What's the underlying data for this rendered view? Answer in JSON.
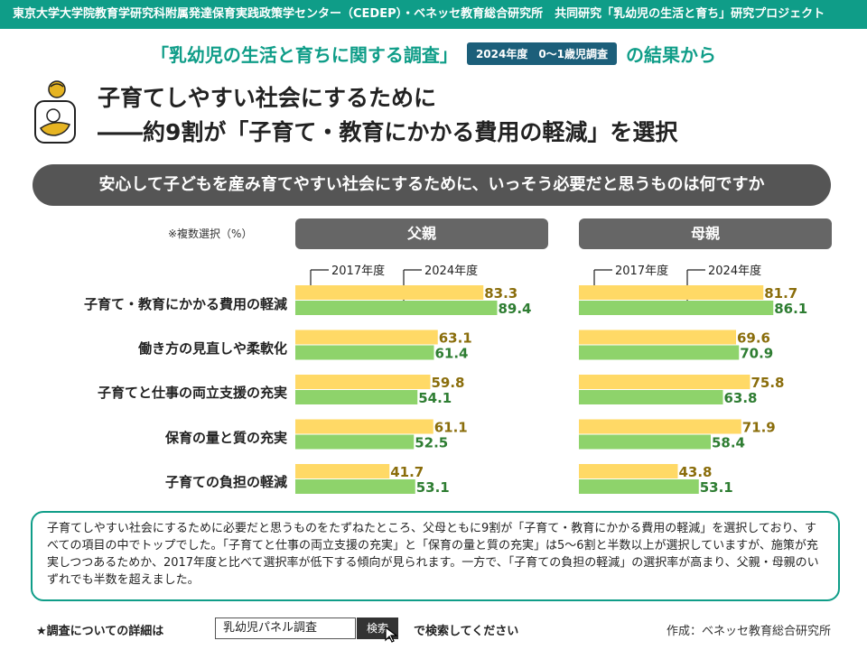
{
  "header": {
    "org_bar": "東京大学大学院教育学研究科附属発達保育実践政策学センター（CEDEP）・ベネッセ教育総合研究所　共同研究「乳幼児の生活と育ち」研究プロジェクト"
  },
  "survey": {
    "title": "「乳幼児の生活と育ちに関する調査」",
    "tag": "2024年度　0～1歳児調査",
    "suffix": "の結果から"
  },
  "headline": {
    "line1": "子育てしやすい社会にするために",
    "line2": "――約9割が「子育て・教育にかかる費用の軽減」を選択"
  },
  "question": "安心して子どもを産み育てやすい社会にするために、いっそう必要だと思うものは何ですか",
  "chart_note": "※複数選択（%）",
  "chart_data": {
    "type": "bar",
    "orientation": "horizontal",
    "categories": [
      "子育て・教育にかかる費用の軽減",
      "働き方の見直しや柔軟化",
      "子育てと仕事の両立支援の充実",
      "保育の量と質の充実",
      "子育ての負担の軽減"
    ],
    "panels": [
      {
        "title": "父親",
        "series": [
          {
            "name": "2017年度",
            "color": "#ffd966",
            "label_color": "#8a6d0b",
            "values": [
              83.3,
              63.1,
              59.8,
              61.1,
              41.7
            ]
          },
          {
            "name": "2024年度",
            "color": "#8ed36b",
            "label_color": "#2e7d32",
            "values": [
              89.4,
              61.4,
              54.1,
              52.5,
              53.1
            ]
          }
        ]
      },
      {
        "title": "母親",
        "series": [
          {
            "name": "2017年度",
            "color": "#ffd966",
            "label_color": "#8a6d0b",
            "values": [
              81.7,
              69.6,
              75.8,
              71.9,
              43.8
            ]
          },
          {
            "name": "2024年度",
            "color": "#8ed36b",
            "label_color": "#2e7d32",
            "values": [
              86.1,
              70.9,
              63.8,
              58.4,
              53.1
            ]
          }
        ]
      }
    ],
    "xlim": [
      0,
      100
    ]
  },
  "summary": "子育てしやすい社会にするために必要だと思うものをたずねたところ、父母ともに9割が「子育て・教育にかかる費用の軽減」を選択しており、すべての項目の中でトップでした。「子育てと仕事の両立支援の充実」と「保育の量と質の充実」は5～6割と半数以上が選択していますが、施策が充実しつつあるためか、2017年度と比べて選択率が低下する傾向が見られます。一方で、「子育ての負担の軽減」の選択率が高まり、父親・母親のいずれでも半数を超えました。",
  "footer": {
    "detail_label": "★調査についての詳細は",
    "search_value": "乳幼児パネル調査",
    "search_button": "検索",
    "search_suffix": "で検索してください",
    "credit": "作成：ベネッセ教育総合研究所"
  },
  "colors": {
    "brand_teal": "#0f9d88",
    "tag_navy": "#1c5f7a",
    "question_bg": "#555555",
    "panel_header_bg": "#666666",
    "icon_gold": "#e6b422"
  },
  "icons": [
    "person-with-child-icon",
    "cursor-icon"
  ]
}
